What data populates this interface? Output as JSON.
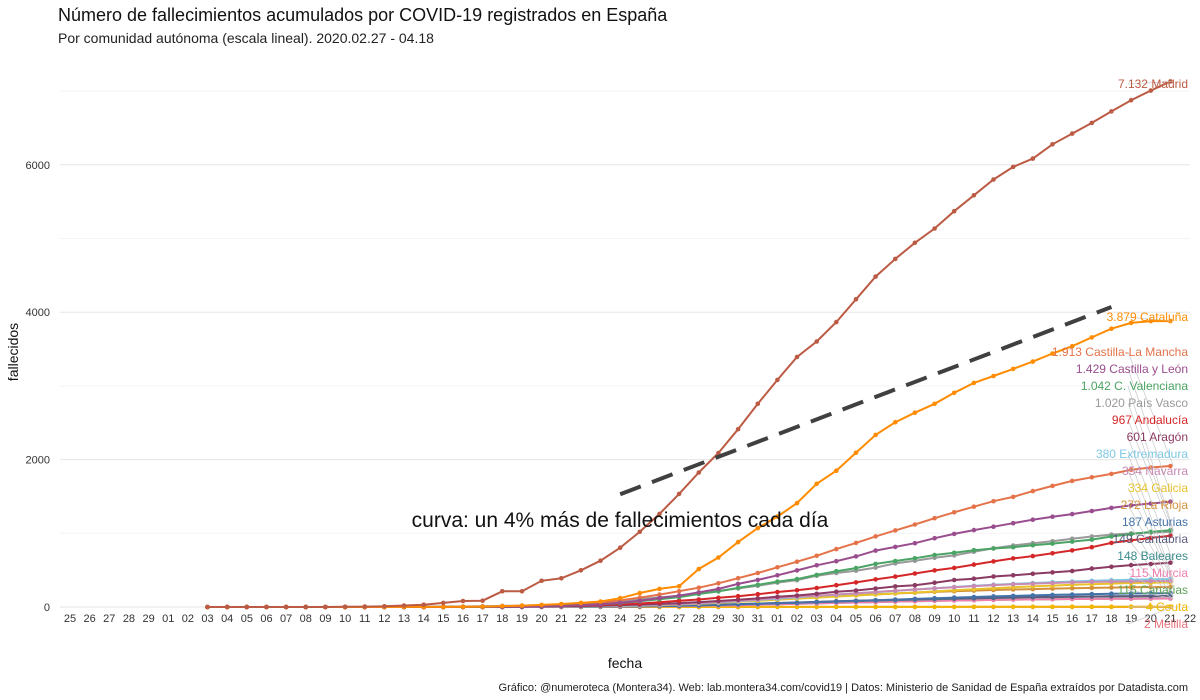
{
  "header": {
    "title": "Número de fallecimientos acumulados por COVID-19 registrados en España",
    "subtitle": "Por comunidad autónoma (escala lineal). 2020.02.27 - 04.18"
  },
  "caption": "Gráfico: @numeroteca (Montera34). Web: lab.montera34.com/covid19 | Datos: Ministerio de Sanidad de España extraídos por Datadista.com",
  "chart_data": {
    "type": "line",
    "xlabel": "fecha",
    "ylabel": "fallecidos",
    "ylim": [
      0,
      7300
    ],
    "yticks": [
      0,
      2000,
      4000,
      6000
    ],
    "grid": true,
    "x_tick_labels": [
      "25",
      "26",
      "27",
      "28",
      "29",
      "01",
      "02",
      "03",
      "04",
      "05",
      "06",
      "07",
      "08",
      "09",
      "10",
      "11",
      "12",
      "13",
      "14",
      "15",
      "16",
      "17",
      "18",
      "19",
      "20",
      "21",
      "22",
      "23",
      "24",
      "25",
      "26",
      "27",
      "28",
      "29",
      "30",
      "31",
      "01",
      "02",
      "03",
      "04",
      "05",
      "06",
      "07",
      "08",
      "09",
      "10",
      "11",
      "12",
      "13",
      "14",
      "15",
      "16",
      "17",
      "18",
      "19",
      "20",
      "21",
      "22"
    ],
    "x_dates_from": "2020-03-03",
    "annotation": {
      "text": "curva: un 4% más de fallecimientos cada día",
      "trend_from": {
        "x": "2020-03-24",
        "y": 1530
      },
      "trend_to": {
        "x": "2020-04-18",
        "y": 4070
      },
      "color": "#404040"
    },
    "series": [
      {
        "name": "Madrid",
        "label": "7.132 Madrid",
        "color": "#bc5b44",
        "values": [
          0,
          0,
          0,
          0,
          0,
          0,
          0,
          3,
          6,
          9,
          21,
          31,
          56,
          81,
          86,
          213,
          213,
          355,
          390,
          498,
          628,
          804,
          1021,
          1263,
          1535,
          1825,
          2090,
          2412,
          2757,
          3082,
          3392,
          3603,
          3865,
          4175,
          4483,
          4723,
          4941,
          5136,
          5371,
          5586,
          5800,
          5972,
          6084,
          6278,
          6423,
          6568,
          6724,
          6877,
          7007,
          7132
        ]
      },
      {
        "name": "Cataluña",
        "label": "3.879 Cataluña",
        "color": "#ff8c00",
        "values": [
          0,
          0,
          0,
          0,
          0,
          0,
          0,
          0,
          0,
          0,
          1,
          1,
          2,
          3,
          5,
          12,
          19,
          28,
          41,
          55,
          75,
          120,
          190,
          245,
          282,
          516,
          672,
          880,
          1070,
          1226,
          1410,
          1672,
          1849,
          2093,
          2335,
          2508,
          2637,
          2757,
          2906,
          3041,
          3135,
          3231,
          3330,
          3439,
          3538,
          3658,
          3776,
          3855,
          3879,
          3879
        ]
      },
      {
        "name": "Castilla y León",
        "label": "1.429 Castilla y León",
        "color": "#9a4d8e",
        "values": [
          0,
          0,
          0,
          0,
          0,
          0,
          0,
          0,
          0,
          0,
          0,
          0,
          1,
          1,
          2,
          3,
          5,
          8,
          14,
          25,
          38,
          57,
          84,
          122,
          155,
          198,
          246,
          314,
          368,
          430,
          497,
          566,
          622,
          686,
          765,
          816,
          866,
          934,
          992,
          1043,
          1090,
          1137,
          1185,
          1225,
          1260,
          1302,
          1344,
          1378,
          1405,
          1429
        ]
      },
      {
        "name": "C. Valenciana",
        "label": "1.042 C. Valenciana",
        "color": "#4aa564",
        "values": [
          0,
          0,
          0,
          0,
          0,
          0,
          0,
          0,
          0,
          0,
          0,
          0,
          1,
          2,
          2,
          3,
          7,
          13,
          18,
          25,
          36,
          53,
          77,
          104,
          135,
          176,
          211,
          259,
          301,
          345,
          378,
          435,
          486,
          528,
          585,
          624,
          661,
          706,
          735,
          771,
          794,
          812,
          838,
          860,
          888,
          914,
          956,
          989,
          1019,
          1042
        ]
      },
      {
        "name": "Castilla-La Mancha",
        "label": "1.913 Castilla-La Mancha",
        "color": "#e5734a",
        "values": [
          0,
          0,
          0,
          0,
          0,
          0,
          0,
          0,
          0,
          0,
          0,
          0,
          0,
          2,
          4,
          7,
          12,
          18,
          28,
          45,
          58,
          90,
          127,
          168,
          215,
          262,
          322,
          391,
          461,
          538,
          614,
          695,
          786,
          870,
          958,
          1040,
          1120,
          1205,
          1285,
          1361,
          1436,
          1494,
          1573,
          1643,
          1711,
          1760,
          1806,
          1862,
          1893,
          1913
        ]
      },
      {
        "name": "País Vasco",
        "label": "1.020 País Vasco",
        "color": "#999999",
        "values": [
          0,
          0,
          0,
          0,
          0,
          0,
          0,
          0,
          0,
          1,
          2,
          3,
          5,
          7,
          11,
          15,
          19,
          26,
          35,
          52,
          63,
          82,
          105,
          130,
          152,
          188,
          218,
          253,
          287,
          331,
          364,
          425,
          462,
          493,
          535,
          591,
          627,
          667,
          700,
          749,
          796,
          834,
          866,
          892,
          926,
          956,
          983,
          998,
          1010,
          1020
        ]
      },
      {
        "name": "Andalucía",
        "label": "967 Andalucía",
        "color": "#d62728",
        "values": [
          0,
          0,
          0,
          0,
          0,
          0,
          0,
          0,
          0,
          0,
          0,
          0,
          0,
          1,
          2,
          3,
          6,
          10,
          13,
          19,
          27,
          36,
          47,
          64,
          85,
          102,
          125,
          146,
          173,
          203,
          227,
          258,
          296,
          334,
          375,
          413,
          454,
          496,
          531,
          575,
          619,
          659,
          691,
          729,
          768,
          811,
          870,
          903,
          937,
          967
        ]
      },
      {
        "name": "Aragón",
        "label": "601 Aragón",
        "color": "#8b3a62",
        "values": [
          0,
          0,
          0,
          0,
          0,
          0,
          0,
          0,
          0,
          0,
          0,
          0,
          0,
          1,
          1,
          2,
          3,
          6,
          9,
          13,
          19,
          26,
          34,
          42,
          53,
          67,
          81,
          98,
          117,
          138,
          156,
          179,
          207,
          224,
          251,
          279,
          296,
          330,
          366,
          384,
          414,
          430,
          451,
          470,
          489,
          521,
          546,
          568,
          583,
          601
        ]
      },
      {
        "name": "Navarra",
        "label": "354 Navarra",
        "color": "#c88bb4",
        "values": [
          0,
          0,
          0,
          0,
          0,
          0,
          0,
          0,
          0,
          0,
          0,
          0,
          0,
          0,
          1,
          2,
          3,
          6,
          8,
          11,
          17,
          21,
          26,
          33,
          41,
          53,
          66,
          83,
          100,
          122,
          138,
          154,
          169,
          186,
          203,
          221,
          238,
          253,
          268,
          283,
          297,
          308,
          318,
          326,
          334,
          340,
          344,
          348,
          351,
          354
        ]
      },
      {
        "name": "Extremadura",
        "label": "380 Extremadura",
        "color": "#7ec8e3",
        "values": [
          0,
          0,
          0,
          0,
          0,
          0,
          0,
          0,
          0,
          0,
          0,
          0,
          0,
          0,
          0,
          0,
          1,
          2,
          4,
          7,
          10,
          15,
          21,
          28,
          37,
          49,
          62,
          77,
          96,
          113,
          130,
          150,
          166,
          184,
          202,
          219,
          238,
          255,
          271,
          288,
          303,
          314,
          325,
          336,
          346,
          355,
          364,
          371,
          376,
          380
        ]
      },
      {
        "name": "Galicia",
        "label": "334 Galicia",
        "color": "#e8c12b",
        "values": [
          0,
          0,
          0,
          0,
          0,
          0,
          0,
          0,
          0,
          0,
          0,
          0,
          0,
          0,
          0,
          0,
          0,
          1,
          2,
          5,
          9,
          13,
          18,
          25,
          34,
          44,
          56,
          70,
          84,
          99,
          114,
          128,
          142,
          156,
          170,
          184,
          197,
          212,
          227,
          241,
          254,
          267,
          280,
          291,
          301,
          310,
          318,
          325,
          330,
          334
        ]
      },
      {
        "name": "La Rioja",
        "label": "272 La Rioja",
        "color": "#d4913a",
        "values": [
          0,
          0,
          0,
          0,
          0,
          0,
          0,
          0,
          0,
          0,
          1,
          2,
          3,
          3,
          4,
          5,
          7,
          9,
          12,
          16,
          20,
          25,
          32,
          40,
          48,
          58,
          68,
          80,
          93,
          107,
          121,
          134,
          148,
          160,
          172,
          183,
          194,
          205,
          214,
          222,
          230,
          237,
          243,
          249,
          254,
          259,
          263,
          267,
          270,
          272
        ]
      },
      {
        "name": "Asturias",
        "label": "187 Asturias",
        "color": "#4472a8",
        "values": [
          0,
          0,
          0,
          0,
          0,
          0,
          0,
          0,
          0,
          0,
          0,
          0,
          0,
          0,
          0,
          0,
          0,
          1,
          2,
          3,
          5,
          7,
          9,
          13,
          17,
          22,
          28,
          35,
          42,
          50,
          58,
          66,
          74,
          83,
          92,
          101,
          110,
          119,
          128,
          136,
          144,
          151,
          158,
          164,
          170,
          175,
          180,
          183,
          185,
          187
        ]
      },
      {
        "name": "Cantabria",
        "label": "149 Cantabria",
        "color": "#5c5c7e",
        "values": [
          0,
          0,
          0,
          0,
          0,
          0,
          0,
          0,
          0,
          0,
          0,
          0,
          0,
          0,
          0,
          0,
          0,
          1,
          2,
          3,
          5,
          7,
          10,
          14,
          19,
          25,
          31,
          38,
          46,
          54,
          61,
          69,
          77,
          84,
          91,
          98,
          105,
          111,
          116,
          121,
          126,
          130,
          134,
          137,
          140,
          143,
          145,
          147,
          148,
          149
        ]
      },
      {
        "name": "Baleares",
        "label": "148 Baleares",
        "color": "#3a8a8a",
        "values": [
          0,
          0,
          0,
          0,
          0,
          0,
          0,
          0,
          0,
          0,
          0,
          0,
          0,
          0,
          0,
          0,
          0,
          1,
          2,
          3,
          5,
          8,
          11,
          15,
          20,
          26,
          32,
          39,
          46,
          53,
          60,
          67,
          74,
          81,
          88,
          94,
          100,
          106,
          112,
          117,
          122,
          127,
          131,
          135,
          139,
          142,
          144,
          146,
          147,
          148
        ]
      },
      {
        "name": "Murcia",
        "label": "115 Murcia",
        "color": "#f07fb0",
        "values": [
          0,
          0,
          0,
          0,
          0,
          0,
          0,
          0,
          0,
          0,
          0,
          0,
          0,
          0,
          0,
          0,
          0,
          1,
          1,
          2,
          3,
          4,
          6,
          9,
          12,
          16,
          20,
          25,
          31,
          37,
          43,
          49,
          55,
          61,
          67,
          73,
          78,
          83,
          88,
          92,
          96,
          100,
          103,
          106,
          108,
          110,
          112,
          113,
          114,
          115
        ]
      },
      {
        "name": "Canarias",
        "label": "115 Canarias",
        "color": "#5ea55a",
        "values": [
          0,
          0,
          0,
          0,
          0,
          0,
          0,
          0,
          0,
          0,
          0,
          0,
          0,
          0,
          0,
          0,
          1,
          1,
          2,
          3,
          5,
          7,
          9,
          12,
          15,
          19,
          23,
          28,
          33,
          38,
          44,
          49,
          55,
          61,
          67,
          73,
          78,
          83,
          88,
          92,
          96,
          100,
          103,
          106,
          108,
          110,
          112,
          113,
          114,
          115
        ]
      },
      {
        "name": "Ceuta",
        "label": "4 Ceuta",
        "color": "#f2b800",
        "values": [
          0,
          0,
          0,
          0,
          0,
          0,
          0,
          0,
          0,
          0,
          0,
          0,
          0,
          0,
          0,
          0,
          0,
          0,
          0,
          0,
          0,
          0,
          0,
          0,
          0,
          0,
          0,
          1,
          1,
          1,
          1,
          1,
          1,
          2,
          2,
          2,
          2,
          2,
          2,
          3,
          3,
          3,
          3,
          3,
          4,
          4,
          4,
          4,
          4,
          4
        ]
      },
      {
        "name": "Melilla",
        "label": "2 Melilla",
        "color": "#e8707a",
        "values": [
          0,
          0,
          0,
          0,
          0,
          0,
          0,
          0,
          0,
          0,
          0,
          0,
          0,
          0,
          0,
          0,
          0,
          0,
          0,
          0,
          0,
          0,
          0,
          0,
          0,
          0,
          0,
          0,
          1,
          1,
          1,
          1,
          1,
          1,
          1,
          1,
          1,
          1,
          1,
          2,
          2,
          2,
          2,
          2,
          2,
          2,
          2,
          2,
          2,
          2
        ]
      }
    ]
  }
}
